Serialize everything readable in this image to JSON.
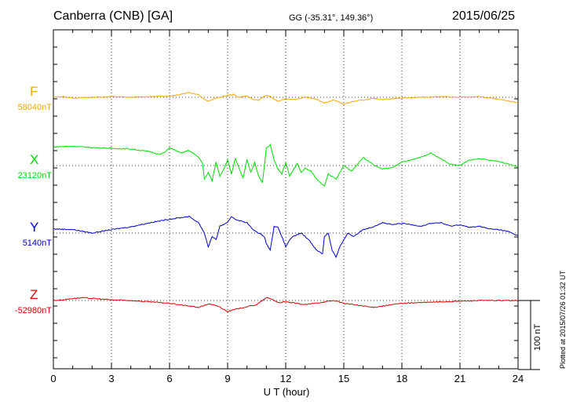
{
  "header": {
    "station": "Canberra (CNB)  [GA]",
    "coords": "GG (-35.31°, 149.36°)",
    "date": "2015/06/25"
  },
  "plotted_note": "Plotted at 2015/07/26 01:32 UT",
  "chart_data": {
    "type": "line",
    "xlabel": "U T (hour)",
    "xlim": [
      0,
      24
    ],
    "xticks": [
      "0",
      "3",
      "6",
      "9",
      "12",
      "15",
      "18",
      "21",
      "24"
    ],
    "scale_bar": {
      "label": "100 nT",
      "value_nT": 100
    },
    "grid": true,
    "series": [
      {
        "name": "F",
        "baseline_label": "58040nT",
        "baseline": 58040,
        "color": "#f5a800",
        "points": [
          [
            0,
            0
          ],
          [
            0.5,
            1
          ],
          [
            1,
            -1
          ],
          [
            2,
            0
          ],
          [
            3,
            1
          ],
          [
            4,
            0
          ],
          [
            5,
            1
          ],
          [
            6,
            2
          ],
          [
            6.5,
            4
          ],
          [
            7,
            7
          ],
          [
            7.5,
            4
          ],
          [
            7.8,
            -3
          ],
          [
            8,
            -6
          ],
          [
            8.3,
            -2
          ],
          [
            8.6,
            0
          ],
          [
            9,
            3
          ],
          [
            9.3,
            4
          ],
          [
            9.6,
            0
          ],
          [
            10,
            2
          ],
          [
            10.3,
            -3
          ],
          [
            10.6,
            -4
          ],
          [
            11,
            3
          ],
          [
            11.2,
            1
          ],
          [
            11.6,
            -6
          ],
          [
            12,
            -2
          ],
          [
            12.5,
            -3
          ],
          [
            13,
            0
          ],
          [
            13.5,
            -2
          ],
          [
            14,
            -8
          ],
          [
            14.5,
            -4
          ],
          [
            15,
            -10
          ],
          [
            15.5,
            -6
          ],
          [
            16,
            -4
          ],
          [
            16.5,
            -2
          ],
          [
            17,
            -3
          ],
          [
            18,
            -1
          ],
          [
            19,
            0
          ],
          [
            20,
            1
          ],
          [
            21,
            0
          ],
          [
            22,
            1
          ],
          [
            23,
            -3
          ],
          [
            24,
            -8
          ]
        ]
      },
      {
        "name": "X",
        "baseline_label": "23120nT",
        "baseline": 23120,
        "color": "#00dd00",
        "points": [
          [
            0,
            27
          ],
          [
            1,
            28
          ],
          [
            2,
            26
          ],
          [
            3,
            25
          ],
          [
            4,
            24
          ],
          [
            5,
            20
          ],
          [
            5.5,
            16
          ],
          [
            5.8,
            20
          ],
          [
            6,
            26
          ],
          [
            6.3,
            22
          ],
          [
            6.6,
            18
          ],
          [
            7,
            22
          ],
          [
            7.2,
            18
          ],
          [
            7.5,
            12
          ],
          [
            7.7,
            4
          ],
          [
            7.8,
            -20
          ],
          [
            8,
            -10
          ],
          [
            8.2,
            -22
          ],
          [
            8.4,
            5
          ],
          [
            8.6,
            -15
          ],
          [
            8.8,
            -5
          ],
          [
            9,
            8
          ],
          [
            9.2,
            -12
          ],
          [
            9.4,
            10
          ],
          [
            9.6,
            -5
          ],
          [
            9.8,
            -18
          ],
          [
            10,
            8
          ],
          [
            10.2,
            -10
          ],
          [
            10.4,
            5
          ],
          [
            10.6,
            -15
          ],
          [
            10.8,
            -25
          ],
          [
            11,
            25
          ],
          [
            11.2,
            30
          ],
          [
            11.4,
            8
          ],
          [
            11.6,
            -5
          ],
          [
            11.8,
            -12
          ],
          [
            12,
            5
          ],
          [
            12.2,
            -15
          ],
          [
            12.4,
            -6
          ],
          [
            12.6,
            3
          ],
          [
            12.8,
            -10
          ],
          [
            13,
            -4
          ],
          [
            13.3,
            -8
          ],
          [
            13.6,
            -20
          ],
          [
            14,
            -30
          ],
          [
            14.2,
            -12
          ],
          [
            14.6,
            -20
          ],
          [
            15,
            0
          ],
          [
            15.4,
            -8
          ],
          [
            15.8,
            5
          ],
          [
            16,
            12
          ],
          [
            16.3,
            6
          ],
          [
            16.6,
            0
          ],
          [
            17,
            -5
          ],
          [
            17.5,
            -3
          ],
          [
            18,
            5
          ],
          [
            18.5,
            8
          ],
          [
            19,
            12
          ],
          [
            19.5,
            18
          ],
          [
            20,
            10
          ],
          [
            20.5,
            2
          ],
          [
            21,
            0
          ],
          [
            21.5,
            8
          ],
          [
            22,
            10
          ],
          [
            22.5,
            8
          ],
          [
            23,
            6
          ],
          [
            23.5,
            2
          ],
          [
            24,
            -2
          ]
        ]
      },
      {
        "name": "Y",
        "baseline_label": "5140nT",
        "baseline": 5140,
        "color": "#0000cc",
        "points": [
          [
            0,
            6
          ],
          [
            1,
            5
          ],
          [
            2,
            0
          ],
          [
            3,
            5
          ],
          [
            4,
            9
          ],
          [
            5,
            15
          ],
          [
            6,
            20
          ],
          [
            6.5,
            22
          ],
          [
            7,
            24
          ],
          [
            7.5,
            15
          ],
          [
            7.8,
            0
          ],
          [
            8,
            -20
          ],
          [
            8.2,
            -5
          ],
          [
            8.4,
            -10
          ],
          [
            8.6,
            10
          ],
          [
            9,
            15
          ],
          [
            9.2,
            24
          ],
          [
            9.4,
            20
          ],
          [
            9.6,
            18
          ],
          [
            10,
            15
          ],
          [
            10.3,
            5
          ],
          [
            10.6,
            0
          ],
          [
            10.9,
            -5
          ],
          [
            11,
            -15
          ],
          [
            11.2,
            -25
          ],
          [
            11.4,
            10
          ],
          [
            11.6,
            8
          ],
          [
            11.8,
            -5
          ],
          [
            12,
            -20
          ],
          [
            12.2,
            -10
          ],
          [
            12.4,
            -5
          ],
          [
            12.8,
            0
          ],
          [
            13.2,
            -10
          ],
          [
            13.6,
            -25
          ],
          [
            13.9,
            -30
          ],
          [
            14,
            -5
          ],
          [
            14.2,
            0
          ],
          [
            14.4,
            -25
          ],
          [
            14.6,
            -35
          ],
          [
            14.8,
            -20
          ],
          [
            15,
            -10
          ],
          [
            15.2,
            0
          ],
          [
            15.5,
            -5
          ],
          [
            16,
            5
          ],
          [
            16.5,
            9
          ],
          [
            17,
            15
          ],
          [
            17.5,
            12
          ],
          [
            18,
            14
          ],
          [
            18.5,
            12
          ],
          [
            19,
            10
          ],
          [
            19.5,
            14
          ],
          [
            20,
            15
          ],
          [
            20.5,
            10
          ],
          [
            21,
            12
          ],
          [
            21.5,
            8
          ],
          [
            22,
            10
          ],
          [
            22.5,
            6
          ],
          [
            23,
            5
          ],
          [
            23.5,
            2
          ],
          [
            24,
            -4
          ]
        ]
      },
      {
        "name": "Z",
        "baseline_label": "-52980nT",
        "baseline": -52980,
        "color": "#dd0000",
        "points": [
          [
            0,
            0
          ],
          [
            0.5,
            1
          ],
          [
            1,
            3
          ],
          [
            1.5,
            4
          ],
          [
            2,
            3
          ],
          [
            3,
            1
          ],
          [
            4,
            0
          ],
          [
            5,
            -2
          ],
          [
            6,
            -4
          ],
          [
            7,
            -8
          ],
          [
            7.5,
            -10
          ],
          [
            8,
            -5
          ],
          [
            8.5,
            -8
          ],
          [
            9,
            -16
          ],
          [
            9.5,
            -12
          ],
          [
            10,
            -9
          ],
          [
            10.5,
            -6
          ],
          [
            10.8,
            0
          ],
          [
            11,
            4
          ],
          [
            11.3,
            2
          ],
          [
            11.6,
            -3
          ],
          [
            12,
            -2
          ],
          [
            12.5,
            -4
          ],
          [
            13,
            -6
          ],
          [
            13.5,
            -4
          ],
          [
            14,
            -2
          ],
          [
            14.5,
            0
          ],
          [
            15,
            -4
          ],
          [
            15.5,
            -6
          ],
          [
            16,
            -8
          ],
          [
            16.5,
            -10
          ],
          [
            17,
            -8
          ],
          [
            17.5,
            -6
          ],
          [
            18,
            -4
          ],
          [
            19,
            -3
          ],
          [
            20,
            -2
          ],
          [
            21,
            -1
          ],
          [
            22,
            0
          ],
          [
            23,
            0
          ],
          [
            24,
            0
          ]
        ]
      }
    ]
  }
}
